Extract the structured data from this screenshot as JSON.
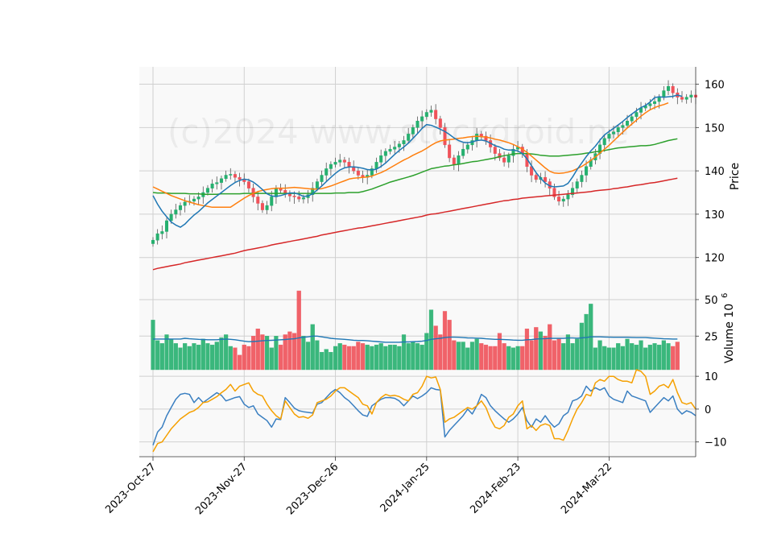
{
  "watermark": "(c)2024 www.stockdroid.ne",
  "colors": {
    "up": "#26b06f",
    "down": "#f0525a",
    "ma_short": "#1f77b4",
    "ma_mid": "#ff7f0e",
    "ma_long": "#2ca02c",
    "ma_200": "#d62728",
    "osc_fast": "#3a7fc1",
    "osc_slow": "#f5a000",
    "vol_ma": "#1f77b4",
    "panel_bg": "#f9f9f9",
    "grid": "#d0d0d0"
  },
  "chart_data": [
    {
      "type": "candlestick",
      "panel": "price",
      "ylabel": "Price",
      "ylim": [
        114,
        164
      ],
      "yticks": [
        120,
        130,
        140,
        150,
        160
      ],
      "x_index_range": [
        -3,
        119
      ],
      "xtick_labels": [
        "2023-Oct-27",
        "2023-Nov-27",
        "2023-Dec-26",
        "2024-Jan-25",
        "2024-Feb-23",
        "2024-Mar-22"
      ],
      "xtick_index": [
        0,
        20,
        40,
        60,
        80,
        100
      ],
      "close": [
        124,
        125.5,
        126,
        128.5,
        130,
        131,
        132,
        132.8,
        133,
        133.5,
        134,
        135,
        136,
        137,
        137.3,
        138.2,
        139,
        139.2,
        138.5,
        138,
        137.5,
        136,
        134,
        132.5,
        131,
        132,
        134,
        136,
        135.5,
        134.8,
        134.2,
        134,
        133.5,
        133.8,
        134.5,
        136,
        137.5,
        139,
        140.5,
        141.5,
        142,
        142.5,
        142,
        141,
        140,
        139,
        138.5,
        139,
        140.5,
        142,
        143.5,
        144.5,
        145,
        145.5,
        146.2,
        147,
        148.5,
        150,
        151.5,
        152.5,
        153.5,
        154,
        152,
        150,
        146,
        143,
        141.5,
        143.5,
        145,
        146,
        147,
        148.5,
        148,
        147,
        145.5,
        144,
        143,
        142,
        143.5,
        145,
        145.5,
        144,
        141,
        139,
        138,
        138.5,
        137.5,
        136,
        134,
        133,
        133.5,
        134.5,
        136,
        137.5,
        139,
        141,
        142.5,
        144,
        146,
        147.5,
        148.5,
        149,
        150,
        150.5,
        151.5,
        152.5,
        153.5,
        154.5,
        155,
        155.5,
        156,
        157,
        158.5,
        159.5,
        158,
        157,
        156.5,
        157,
        157.5,
        157
      ],
      "ma_short": [
        134.3,
        132.3,
        130.7,
        129.4,
        128.2,
        127.5,
        127,
        127.7,
        128.8,
        129.8,
        130.6,
        131.6,
        132.6,
        133.4,
        134.2,
        135,
        135.8,
        136.6,
        137.3,
        137.8,
        138.1,
        137.9,
        137.4,
        136.6,
        135.7,
        134.7,
        134.2,
        134.1,
        134.3,
        134.6,
        134.9,
        134.9,
        134.6,
        134.1,
        134.2,
        134.7,
        135.6,
        136.5,
        137.5,
        138.5,
        139.4,
        140.2,
        140.7,
        140.9,
        140.9,
        140.8,
        140.6,
        140.3,
        140.2,
        140.4,
        141,
        141.8,
        142.8,
        143.8,
        144.7,
        145.5,
        146.4,
        147.5,
        148.6,
        149.8,
        150.7,
        150.5,
        150.1,
        149.6,
        149.1,
        148.4,
        147.6,
        147,
        146.6,
        146.5,
        146.7,
        147,
        147.1,
        146.9,
        146.4,
        145.8,
        145.5,
        145,
        144.8,
        144.8,
        144.6,
        144,
        142.8,
        141.2,
        139.6,
        138.3,
        137.2,
        136.5,
        136.3,
        136.4,
        136.5,
        137.1,
        138.6,
        140.3,
        141.8,
        143.3,
        144.6,
        145.7,
        147.1,
        148.3,
        149.1,
        149.8,
        150.6,
        151.4,
        152.3,
        153.1,
        153.9,
        154.6,
        155.1,
        155.9,
        156.9,
        157.1,
        157,
        157.1,
        157.2,
        157.5,
        157.2
      ],
      "ma_mid": [
        136.3,
        135.8,
        135.3,
        134.8,
        134.3,
        133.9,
        133.5,
        133.1,
        132.8,
        132.5,
        132.2,
        132,
        131.8,
        131.6,
        131.6,
        131.6,
        131.6,
        131.6,
        132.3,
        133,
        133.7,
        134.3,
        134.8,
        135.2,
        135.5,
        135.7,
        135.9,
        136,
        136,
        136,
        136.1,
        136.2,
        136.1,
        136,
        135.9,
        135.8,
        135.8,
        135.9,
        136.2,
        136.5,
        136.9,
        137.3,
        137.7,
        138.1,
        138.3,
        138.4,
        138.5,
        138.6,
        138.8,
        139.2,
        139.6,
        140.1,
        140.7,
        141.3,
        141.9,
        142.5,
        143,
        143.6,
        144.1,
        144.6,
        145.2,
        145.9,
        146.5,
        146.9,
        147.1,
        147.2,
        147.3,
        147.5,
        147.6,
        147.8,
        147.9,
        148,
        147.9,
        147.8,
        147.6,
        147.3,
        147.1,
        146.8,
        146.5,
        146.1,
        145.6,
        145,
        144.3,
        143.4,
        142.5,
        141.6,
        140.7,
        139.9,
        139.5,
        139.4,
        139.5,
        139.7,
        140,
        140.5,
        141,
        141.7,
        142.4,
        143.2,
        144.1,
        145,
        145.9,
        146.9,
        147.9,
        148.9,
        149.9,
        150.8,
        151.7,
        152.6,
        153.4,
        154.1,
        154.6,
        155,
        155.3,
        155.7
      ],
      "ma_long": [
        135,
        134.9,
        134.9,
        134.9,
        134.8,
        134.8,
        134.8,
        134.8,
        134.7,
        134.7,
        134.7,
        134.6,
        134.6,
        134.6,
        134.6,
        134.7,
        134.7,
        134.7,
        134.7,
        134.7,
        134.8,
        134.8,
        134.8,
        134.8,
        134.8,
        134.8,
        134.8,
        134.8,
        134.8,
        134.8,
        134.8,
        134.8,
        134.8,
        134.8,
        134.8,
        134.8,
        134.8,
        134.8,
        134.8,
        134.8,
        134.9,
        134.9,
        134.9,
        135,
        135,
        135,
        135.2,
        135.5,
        135.8,
        136.2,
        136.6,
        137,
        137.4,
        137.7,
        138,
        138.3,
        138.6,
        138.9,
        139.3,
        139.7,
        140.1,
        140.5,
        140.7,
        140.9,
        141.1,
        141.2,
        141.4,
        141.5,
        141.7,
        141.9,
        142.1,
        142.2,
        142.4,
        142.6,
        142.8,
        143,
        143.3,
        143.5,
        143.7,
        143.9,
        144,
        144,
        144,
        143.9,
        143.8,
        143.6,
        143.5,
        143.4,
        143.4,
        143.4,
        143.5,
        143.6,
        143.7,
        143.8,
        143.9,
        144.1,
        144.2,
        144.4,
        144.5,
        144.7,
        144.9,
        145.1,
        145.3,
        145.4,
        145.5,
        145.6,
        145.7,
        145.8,
        145.8,
        145.9,
        146.1,
        146.4,
        146.7,
        147,
        147.2,
        147.4
      ],
      "ma_200": [
        117.2,
        117.5,
        117.7,
        117.9,
        118.1,
        118.3,
        118.5,
        118.8,
        119,
        119.2,
        119.4,
        119.6,
        119.8,
        120,
        120.2,
        120.4,
        120.6,
        120.8,
        121,
        121.3,
        121.6,
        121.8,
        122,
        122.2,
        122.4,
        122.6,
        122.9,
        123.1,
        123.3,
        123.5,
        123.7,
        123.9,
        124.1,
        124.3,
        124.5,
        124.7,
        124.9,
        125.2,
        125.4,
        125.6,
        125.8,
        126,
        126.2,
        126.4,
        126.6,
        126.8,
        126.9,
        127.1,
        127.3,
        127.5,
        127.7,
        127.9,
        128.1,
        128.3,
        128.5,
        128.7,
        128.9,
        129.1,
        129.3,
        129.5,
        129.8,
        130,
        130.1,
        130.3,
        130.5,
        130.7,
        130.9,
        131.1,
        131.3,
        131.5,
        131.7,
        131.9,
        132.1,
        132.3,
        132.5,
        132.7,
        132.9,
        133.1,
        133.2,
        133.4,
        133.5,
        133.7,
        133.8,
        133.9,
        134,
        134.1,
        134.2,
        134.3,
        134.4,
        134.5,
        134.6,
        134.7,
        134.8,
        134.9,
        135,
        135.1,
        135.2,
        135.4,
        135.5,
        135.6,
        135.7,
        135.9,
        136,
        136.2,
        136.3,
        136.5,
        136.7,
        136.8,
        137,
        137.2,
        137.3,
        137.5,
        137.7,
        137.9,
        138.1,
        138.3
      ]
    },
    {
      "type": "bar",
      "panel": "volume",
      "ylabel": "Volume  10^6",
      "ylim": [
        2,
        61
      ],
      "yticks": [
        25,
        50
      ],
      "volume": [
        36,
        22,
        20,
        26,
        23,
        20,
        17,
        20,
        18,
        20,
        19,
        23,
        20,
        19,
        21,
        24,
        26,
        18,
        17,
        12,
        19,
        18,
        25,
        30,
        26,
        25,
        17,
        25,
        19,
        26,
        28,
        27,
        56,
        25,
        21,
        33,
        22,
        14,
        16,
        14,
        18,
        20,
        19,
        18,
        18,
        21,
        20,
        19,
        18,
        19,
        20,
        18,
        19,
        19,
        18,
        26,
        20,
        21,
        20,
        19,
        27,
        43,
        32,
        26,
        42,
        36,
        22,
        21,
        21,
        17,
        21,
        23,
        20,
        19,
        18,
        18,
        27,
        20,
        18,
        17,
        18,
        18,
        30,
        22,
        31,
        28,
        25,
        33,
        22,
        23,
        20,
        26,
        20,
        23,
        34,
        40,
        47,
        17,
        22,
        18,
        17,
        17,
        20,
        18,
        23,
        20,
        19,
        22,
        17,
        19,
        20,
        19,
        22,
        20,
        18,
        21
      ],
      "vol_ma": [
        23,
        23,
        23,
        23,
        23,
        23,
        23,
        23.5,
        23.2,
        23,
        22.8,
        22.7,
        22.5,
        22.5,
        22.5,
        22.8,
        23,
        22.8,
        22.5,
        22,
        21.5,
        21.2,
        21.3,
        21.5,
        21.8,
        22,
        22.1,
        22.3,
        22.5,
        22.7,
        23,
        23.2,
        23.8,
        24.2,
        24.5,
        25,
        25,
        24.5,
        24,
        23.5,
        23.2,
        23,
        22.8,
        22.5,
        22.2,
        22,
        22,
        21.8,
        21.5,
        21.3,
        21,
        20.8,
        20.8,
        20.8,
        20.8,
        21,
        21,
        21.2,
        21.3,
        21.5,
        22,
        22.8,
        23.2,
        23.5,
        24,
        24.3,
        24.3,
        24.2,
        24,
        23.8,
        23.7,
        23.6,
        23.5,
        23.2,
        23,
        22.8,
        22.8,
        22.6,
        22.5,
        22.3,
        22.2,
        22.2,
        22.5,
        22.6,
        23,
        23.2,
        23.3,
        23.5,
        23.5,
        23.5,
        23.5,
        23.7,
        23.7,
        23.6,
        23.8,
        24,
        24.5,
        24.5,
        24.5,
        24.4,
        24.3,
        24.2,
        24.2,
        24.2,
        24.2,
        24.1,
        24,
        24,
        24,
        23.8,
        23.6,
        23.4,
        23.2,
        23.1,
        23,
        23
      ]
    },
    {
      "type": "line",
      "panel": "oscillator",
      "ylim": [
        -14.5,
        12
      ],
      "yticks": [
        -10,
        0,
        10
      ],
      "series_fast": [
        -11,
        -7,
        -5.5,
        -2,
        0.5,
        3,
        4.5,
        4.8,
        4.5,
        2,
        3.5,
        2,
        3,
        4,
        5,
        4.2,
        2.5,
        3,
        3.5,
        3.8,
        1.5,
        0.5,
        1,
        -1.5,
        -2.5,
        -3.5,
        -5.5,
        -3,
        -3.2,
        3.5,
        2,
        0.3,
        -0.5,
        -0.8,
        -1,
        -1.2,
        1.5,
        2,
        3.5,
        5,
        6,
        5,
        3.5,
        2.5,
        1,
        -0.5,
        -1.8,
        -2.2,
        1,
        2,
        3,
        3.5,
        3.5,
        3.3,
        2.5,
        1,
        2.5,
        4,
        3.2,
        4,
        5,
        6.5,
        6,
        5.8,
        -8.5,
        -6.5,
        -5,
        -3.5,
        -2,
        0,
        -1.5,
        1,
        4.5,
        3.5,
        1,
        -0.5,
        -1.8,
        -3,
        -4,
        -3,
        -1.5,
        0.5,
        -3.5,
        -5.5,
        -3,
        -4,
        -2,
        -4,
        -5.5,
        -4.5,
        -2,
        -1,
        2.5,
        3,
        4,
        7,
        5.5,
        6.5,
        5.8,
        6.5,
        4,
        3,
        2.5,
        2,
        5.5,
        4,
        3.5,
        3,
        2.5,
        -1,
        0.5,
        2,
        3.5,
        2.5,
        4,
        0,
        -1.5,
        -0.5,
        -1,
        -2
      ],
      "series_slow": [
        -13,
        -10.5,
        -10,
        -8,
        -6,
        -4.5,
        -3,
        -2,
        -1,
        -0.5,
        0.5,
        2,
        2.2,
        3,
        3.8,
        5,
        6,
        7.5,
        5.5,
        7,
        7.5,
        8,
        5.5,
        4.5,
        4,
        1.5,
        -0.5,
        -2,
        -3,
        2.5,
        0.5,
        -1.5,
        -2.5,
        -2.3,
        -2.8,
        -1.8,
        2,
        2.5,
        3,
        4,
        5.5,
        6.5,
        6.5,
        5.5,
        4.5,
        3.5,
        1.5,
        1,
        -1.5,
        2,
        3.5,
        4.5,
        4,
        4.2,
        3.8,
        3,
        2.5,
        4.5,
        5,
        7,
        10,
        9.5,
        9.8,
        6,
        -4,
        -3,
        -2.5,
        -1.5,
        -0.5,
        0.5,
        0,
        1,
        2.5,
        0.5,
        -3,
        -5.5,
        -6,
        -5,
        -2.5,
        -1.5,
        1,
        2.5,
        -6,
        -5,
        -6.5,
        -5,
        -4.5,
        -5,
        -9,
        -9,
        -9.5,
        -6.5,
        -3,
        0,
        2,
        4.5,
        4,
        8,
        9,
        8.5,
        10,
        10,
        9,
        8.5,
        8.5,
        8,
        12,
        11.5,
        10,
        4.5,
        5.5,
        7,
        7.5,
        6.5,
        9,
        5,
        2,
        1.5,
        2,
        0
      ]
    }
  ]
}
